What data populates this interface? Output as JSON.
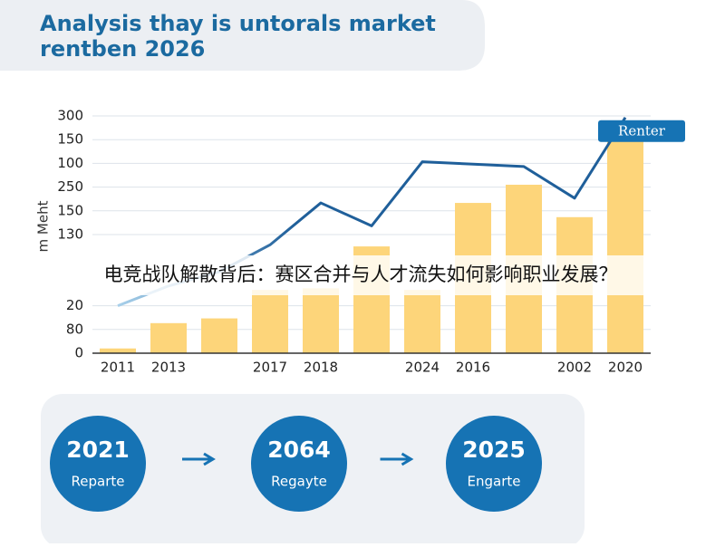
{
  "chart_data": {
    "type": "bar-line",
    "title_lines": [
      "Analysis thay is untorals market",
      "rentben 2026"
    ],
    "ylabel": "m Meht",
    "annotation": "Renter",
    "categories": [
      "2011",
      "2013",
      null,
      "2017",
      "2018",
      null,
      "2024",
      "2016",
      null,
      "2002",
      "2020"
    ],
    "series": [
      {
        "type": "bar",
        "color": "#fdd57a",
        "values": [
          6,
          38,
          44,
          80,
          82,
          135,
          80,
          190,
          213,
          172,
          275
        ]
      },
      {
        "type": "line",
        "color": "#1f5f9a",
        "values": [
          60,
          85,
          103,
          137,
          190,
          161,
          242,
          239,
          236,
          196,
          298
        ]
      }
    ],
    "ylim": [
      0,
      300
    ],
    "yticks": [
      0,
      {
        "value": 30,
        "label": "80"
      },
      {
        "value": 60,
        "label": "20"
      },
      {
        "value": 150,
        "label": "130"
      },
      {
        "value": 180,
        "label": "150"
      },
      {
        "value": 210,
        "label": "250"
      },
      {
        "value": 240,
        "label": "100"
      },
      {
        "value": 270,
        "label": "150"
      },
      300
    ],
    "grid": true
  },
  "overlay": "电竞战队解散背后：赛区合并与人才流失如何影响职业发展？",
  "steps": [
    {
      "year": "2021",
      "label": "Reparte"
    },
    {
      "year": "2064",
      "label": "Regayte"
    },
    {
      "year": "2025",
      "label": "Engarte"
    }
  ]
}
